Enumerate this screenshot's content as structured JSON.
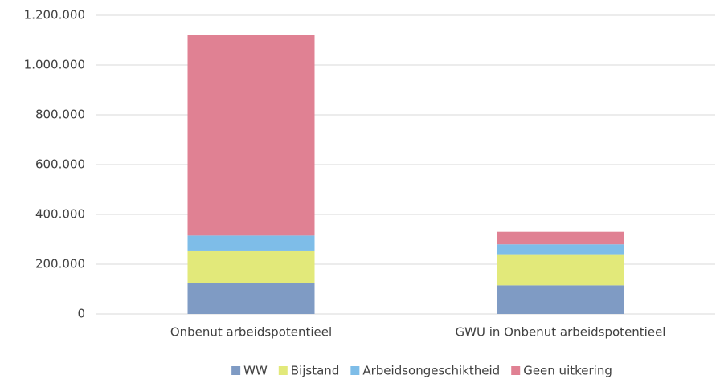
{
  "chart_data": {
    "type": "stacked_bar",
    "categories": [
      "Onbenut arbeidspotentieel",
      "GWU in Onbenut arbeidspotentieel"
    ],
    "series": [
      {
        "name": "WW",
        "color": "#7f9bc4",
        "values": [
          125000,
          115000
        ]
      },
      {
        "name": "Bijstand",
        "color": "#e2e97a",
        "values": [
          130000,
          125000
        ]
      },
      {
        "name": "Arbeidsongeschiktheid",
        "color": "#7ebde8",
        "values": [
          60000,
          40000
        ]
      },
      {
        "name": "Geen uitkering",
        "color": "#e08193",
        "values": [
          805000,
          50000
        ]
      }
    ],
    "ylim": [
      0,
      1200000
    ],
    "yticks": [
      0,
      {
        "value": 200000,
        "label": "200.000"
      },
      {
        "value": 400000,
        "label": "400.000"
      },
      {
        "value": 600000,
        "label": "600.000"
      },
      {
        "value": 800000,
        "label": "800.000"
      },
      {
        "value": 1000000,
        "label": "1.000.000"
      },
      {
        "value": 1200000,
        "label": "1.200.000"
      }
    ],
    "grid": true,
    "legend": "bottom"
  }
}
